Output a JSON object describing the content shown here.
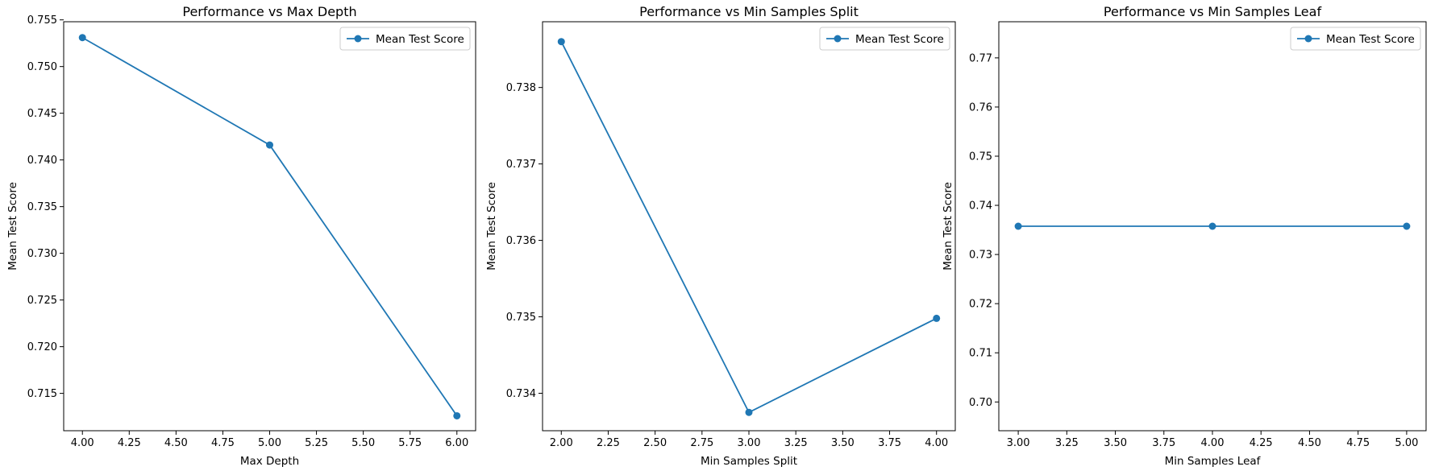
{
  "chart_data": [
    {
      "type": "line",
      "title": "Performance vs Max Depth",
      "xlabel": "Max Depth",
      "ylabel": "Mean Test Score",
      "x": [
        4,
        5,
        6
      ],
      "series": [
        {
          "name": "Mean Test Score",
          "values": [
            0.7531,
            0.7416,
            0.7126
          ],
          "color": "#1f77b4"
        }
      ],
      "xlim": [
        3.9,
        6.1
      ],
      "ylim": [
        0.711,
        0.7548
      ],
      "xticks": [
        4.0,
        4.25,
        4.5,
        4.75,
        5.0,
        5.25,
        5.5,
        5.75,
        6.0
      ],
      "xtick_labels": [
        "4.00",
        "4.25",
        "4.50",
        "4.75",
        "5.00",
        "5.25",
        "5.50",
        "5.75",
        "6.00"
      ],
      "yticks": [
        0.715,
        0.72,
        0.725,
        0.73,
        0.735,
        0.74,
        0.745,
        0.75,
        0.755
      ],
      "ytick_labels": [
        "0.715",
        "0.720",
        "0.725",
        "0.730",
        "0.735",
        "0.740",
        "0.745",
        "0.750",
        "0.755"
      ],
      "legend": "top-right",
      "grid": false
    },
    {
      "type": "line",
      "title": "Performance vs Min Samples Split",
      "xlabel": "Min Samples Split",
      "ylabel": "Mean Test Score",
      "x": [
        2,
        3,
        4
      ],
      "series": [
        {
          "name": "Mean Test Score",
          "values": [
            0.7386,
            0.73375,
            0.73498
          ],
          "color": "#1f77b4"
        }
      ],
      "xlim": [
        1.9,
        4.1
      ],
      "ylim": [
        0.73351,
        0.73886
      ],
      "xticks": [
        2.0,
        2.25,
        2.5,
        2.75,
        3.0,
        3.25,
        3.5,
        3.75,
        4.0
      ],
      "xtick_labels": [
        "2.00",
        "2.25",
        "2.50",
        "2.75",
        "3.00",
        "3.25",
        "3.50",
        "3.75",
        "4.00"
      ],
      "yticks": [
        0.734,
        0.735,
        0.736,
        0.737,
        0.738
      ],
      "ytick_labels": [
        "0.734",
        "0.735",
        "0.736",
        "0.737",
        "0.738"
      ],
      "legend": "top-right",
      "grid": false
    },
    {
      "type": "line",
      "title": "Performance vs Min Samples Leaf",
      "xlabel": "Min Samples Leaf",
      "ylabel": "Mean Test Score",
      "x": [
        3,
        4,
        5
      ],
      "series": [
        {
          "name": "Mean Test Score",
          "values": [
            0.73575,
            0.73575,
            0.73575
          ],
          "color": "#1f77b4"
        }
      ],
      "xlim": [
        2.9,
        5.1
      ],
      "ylim": [
        0.69415,
        0.77735
      ],
      "xticks": [
        3.0,
        3.25,
        3.5,
        3.75,
        4.0,
        4.25,
        4.5,
        4.75,
        5.0
      ],
      "xtick_labels": [
        "3.00",
        "3.25",
        "3.50",
        "3.75",
        "4.00",
        "4.25",
        "4.50",
        "4.75",
        "5.00"
      ],
      "yticks": [
        0.7,
        0.71,
        0.72,
        0.73,
        0.74,
        0.75,
        0.76,
        0.77
      ],
      "ytick_labels": [
        "0.70",
        "0.71",
        "0.72",
        "0.73",
        "0.74",
        "0.75",
        "0.76",
        "0.77"
      ],
      "legend": "top-right",
      "grid": false
    }
  ]
}
